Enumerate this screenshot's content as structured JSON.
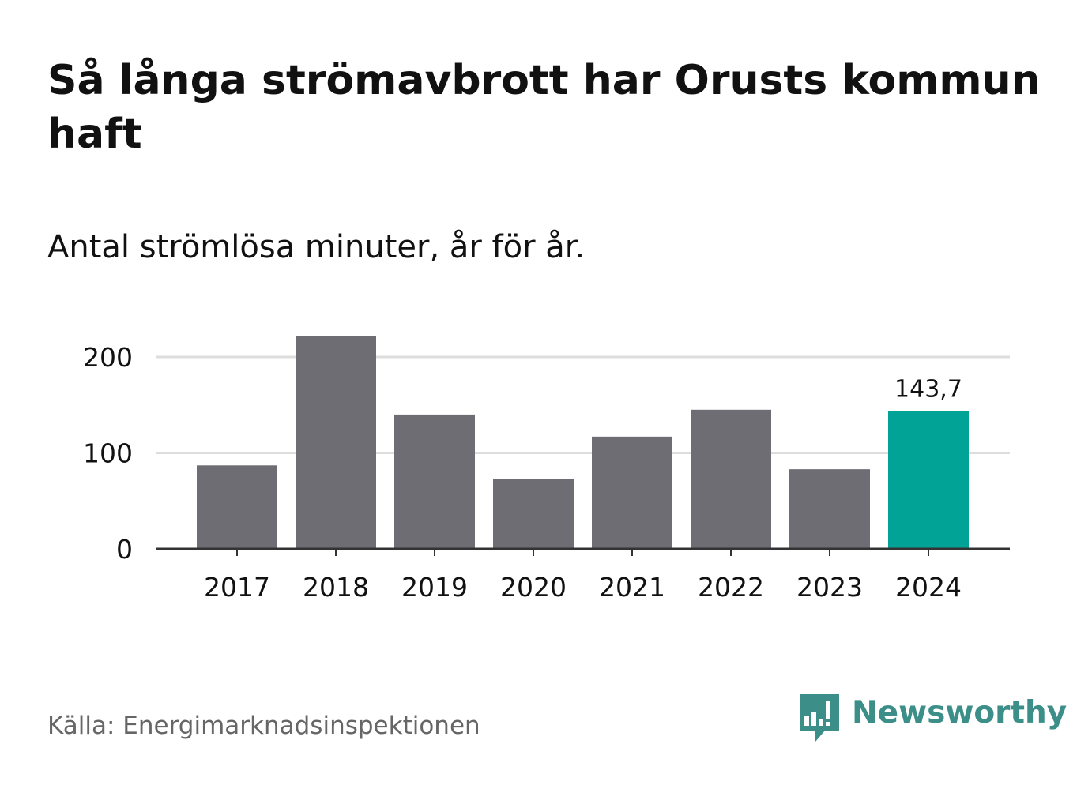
{
  "title": "Så långa strömavbrott har Orusts kommun haft",
  "subtitle": "Antal strömlösa minuter, år för år.",
  "source": "Källa: Energimarknadsinspektionen",
  "brand": {
    "name": "Newsworthy",
    "icon": "newsworthy-logo-icon",
    "color": "#3b8f88"
  },
  "colors": {
    "bar": "#6e6d74",
    "highlight": "#00a396",
    "grid": "#dddddd",
    "axis": "#333333",
    "text": "#111111",
    "muted": "#666666"
  },
  "chart_data": {
    "type": "bar",
    "title": "Så långa strömavbrott har Orusts kommun haft",
    "subtitle": "Antal strömlösa minuter, år för år.",
    "xlabel": "",
    "ylabel": "",
    "categories": [
      "2017",
      "2018",
      "2019",
      "2020",
      "2021",
      "2022",
      "2023",
      "2024"
    ],
    "values": [
      87,
      222,
      140,
      73,
      117,
      145,
      83,
      143.7
    ],
    "highlight_index": 7,
    "highlight_label": "143,7",
    "ylim": [
      0,
      230
    ],
    "yticks": [
      0,
      100,
      200
    ],
    "ytick_labels": [
      "0",
      "100",
      "200"
    ],
    "grid": true,
    "legend": "none"
  }
}
